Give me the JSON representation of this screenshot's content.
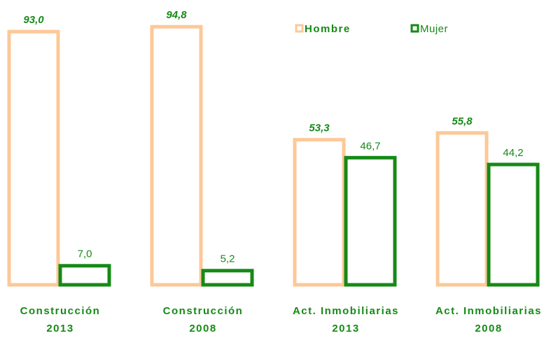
{
  "chart_data": {
    "type": "bar",
    "categories": [
      [
        "Construcción",
        "2013"
      ],
      [
        "Construcción",
        "2008"
      ],
      [
        "Act. Inmobiliarias",
        "2013"
      ],
      [
        "Act. Inmobiliarias",
        "2008"
      ]
    ],
    "series": [
      {
        "name": "Hombre",
        "color": "#fdc898",
        "values": [
          93.0,
          94.8,
          53.3,
          55.8
        ],
        "value_labels": [
          "93,0",
          "94,8",
          "53,3",
          "55,8"
        ]
      },
      {
        "name": "Mujer",
        "color": "#168a16",
        "values": [
          7.0,
          5.2,
          46.7,
          44.2
        ],
        "value_labels": [
          "7,0",
          "5,2",
          "46,7",
          "44,2"
        ]
      }
    ],
    "legend": "top-right"
  }
}
